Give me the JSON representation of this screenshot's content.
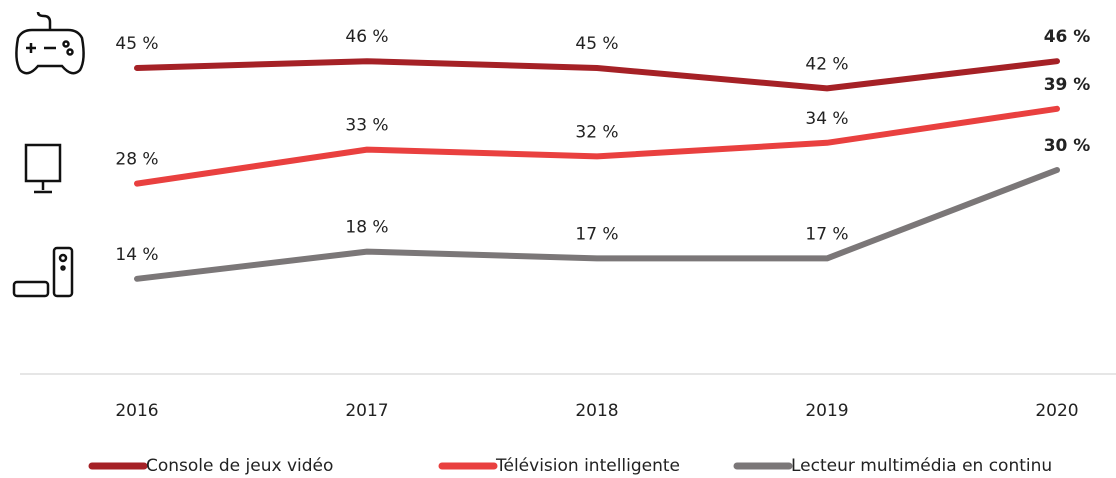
{
  "chart_data": {
    "type": "line",
    "categories": [
      "2016",
      "2017",
      "2018",
      "2019",
      "2020"
    ],
    "series": [
      {
        "name": "Console de jeux vidéo",
        "color": "#a52126",
        "values": [
          45,
          46,
          45,
          42,
          46
        ],
        "value_labels": [
          "45 %",
          "46 %",
          "45 %",
          "42 %",
          "46 %"
        ]
      },
      {
        "name": "Télévision intelligente",
        "color": "#e9403f",
        "values": [
          28,
          33,
          32,
          34,
          39
        ],
        "value_labels": [
          "28 %",
          "33 %",
          "32 %",
          "34 %",
          "39 %"
        ]
      },
      {
        "name": "Lecteur multimédia en continu",
        "color": "#7b7778",
        "values": [
          14,
          18,
          17,
          17,
          30
        ],
        "value_labels": [
          "14 %",
          "18 %",
          "17 %",
          "17 %",
          "30 %"
        ]
      }
    ],
    "ylim": [
      0,
      50
    ],
    "grid": false,
    "legend": "bottom"
  }
}
